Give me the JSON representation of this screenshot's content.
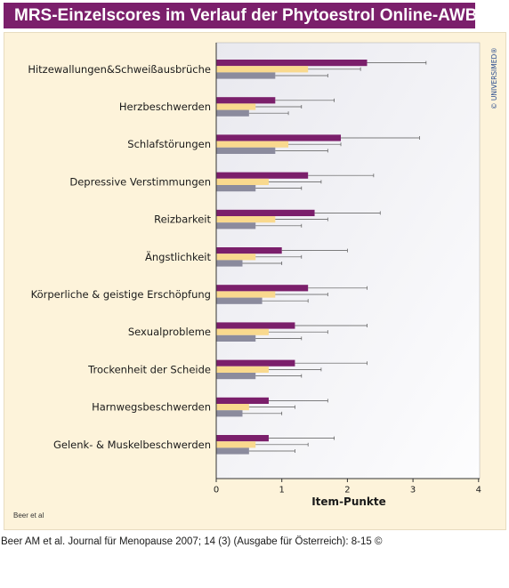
{
  "header": {
    "title": "MRS-Einzelscores im Verlauf der Phytoestrol Online-AWB"
  },
  "watermark": {
    "text": "© UNIVERSIMED®"
  },
  "source_small": "Beer et al",
  "citation": "Beer AM et al. Journal für Menopause 2007; 14 (3) (Ausgabe für Österreich): 8-15 ©",
  "colors": {
    "title_bg": "#7b1f6b",
    "panel_bg": "#fdf3da",
    "series": [
      "#7b1f6b",
      "#f9d98e",
      "#8b8b9d"
    ],
    "error_bar": "#555555"
  },
  "chart_data": {
    "type": "bar",
    "orientation": "horizontal",
    "categories": [
      "Hitzewallungen&Schweißausbrüche",
      "Herzbeschwerden",
      "Schlafstörungen",
      "Depressive Verstimmungen",
      "Reizbarkeit",
      "Ängstlichkeit",
      "Körperliche & geistige Erschöpfung",
      "Sexualprobleme",
      "Trockenheit der Scheide",
      "Harnwegsbeschwerden",
      "Gelenk- & Muskelbeschwerden"
    ],
    "series": [
      {
        "values": [
          2.3,
          0.9,
          1.9,
          1.4,
          1.5,
          1.0,
          1.4,
          1.2,
          1.2,
          0.8,
          0.8
        ],
        "errors": [
          0.9,
          0.9,
          1.2,
          1.0,
          1.0,
          1.0,
          0.9,
          1.1,
          1.1,
          0.9,
          1.0
        ]
      },
      {
        "values": [
          1.4,
          0.6,
          1.1,
          0.8,
          0.9,
          0.6,
          0.9,
          0.8,
          0.8,
          0.5,
          0.6
        ],
        "errors": [
          0.8,
          0.7,
          0.8,
          0.8,
          0.8,
          0.7,
          0.8,
          0.9,
          0.8,
          0.7,
          0.8
        ]
      },
      {
        "values": [
          0.9,
          0.5,
          0.9,
          0.6,
          0.6,
          0.4,
          0.7,
          0.6,
          0.6,
          0.4,
          0.5
        ],
        "errors": [
          0.8,
          0.6,
          0.8,
          0.7,
          0.7,
          0.6,
          0.7,
          0.7,
          0.7,
          0.6,
          0.7
        ]
      }
    ],
    "xlabel": "Item-Punkte",
    "xticks": [
      "0",
      "1",
      "2",
      "3",
      "4"
    ],
    "xlim": [
      0,
      4
    ],
    "error_bars": true,
    "grid": false,
    "legend": false
  }
}
